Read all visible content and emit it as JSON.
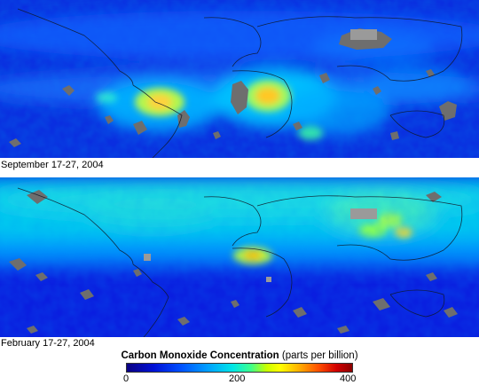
{
  "maps": [
    {
      "caption": "September 17-27, 2004"
    },
    {
      "caption": "February 17-27, 2004"
    }
  ],
  "legend": {
    "title": "Carbon Monoxide Concentration",
    "units": "(parts per billion)",
    "ticks": [
      "0",
      "200",
      "400"
    ],
    "range": [
      0,
      400
    ],
    "colormap": [
      "#0a0082",
      "#0011d6",
      "#0050ff",
      "#00a0ff",
      "#00e6e6",
      "#3cff8c",
      "#c8ff00",
      "#ffff00",
      "#ffb400",
      "#ff5000",
      "#d20000",
      "#8c0000"
    ],
    "no_data_color": "#707070"
  }
}
